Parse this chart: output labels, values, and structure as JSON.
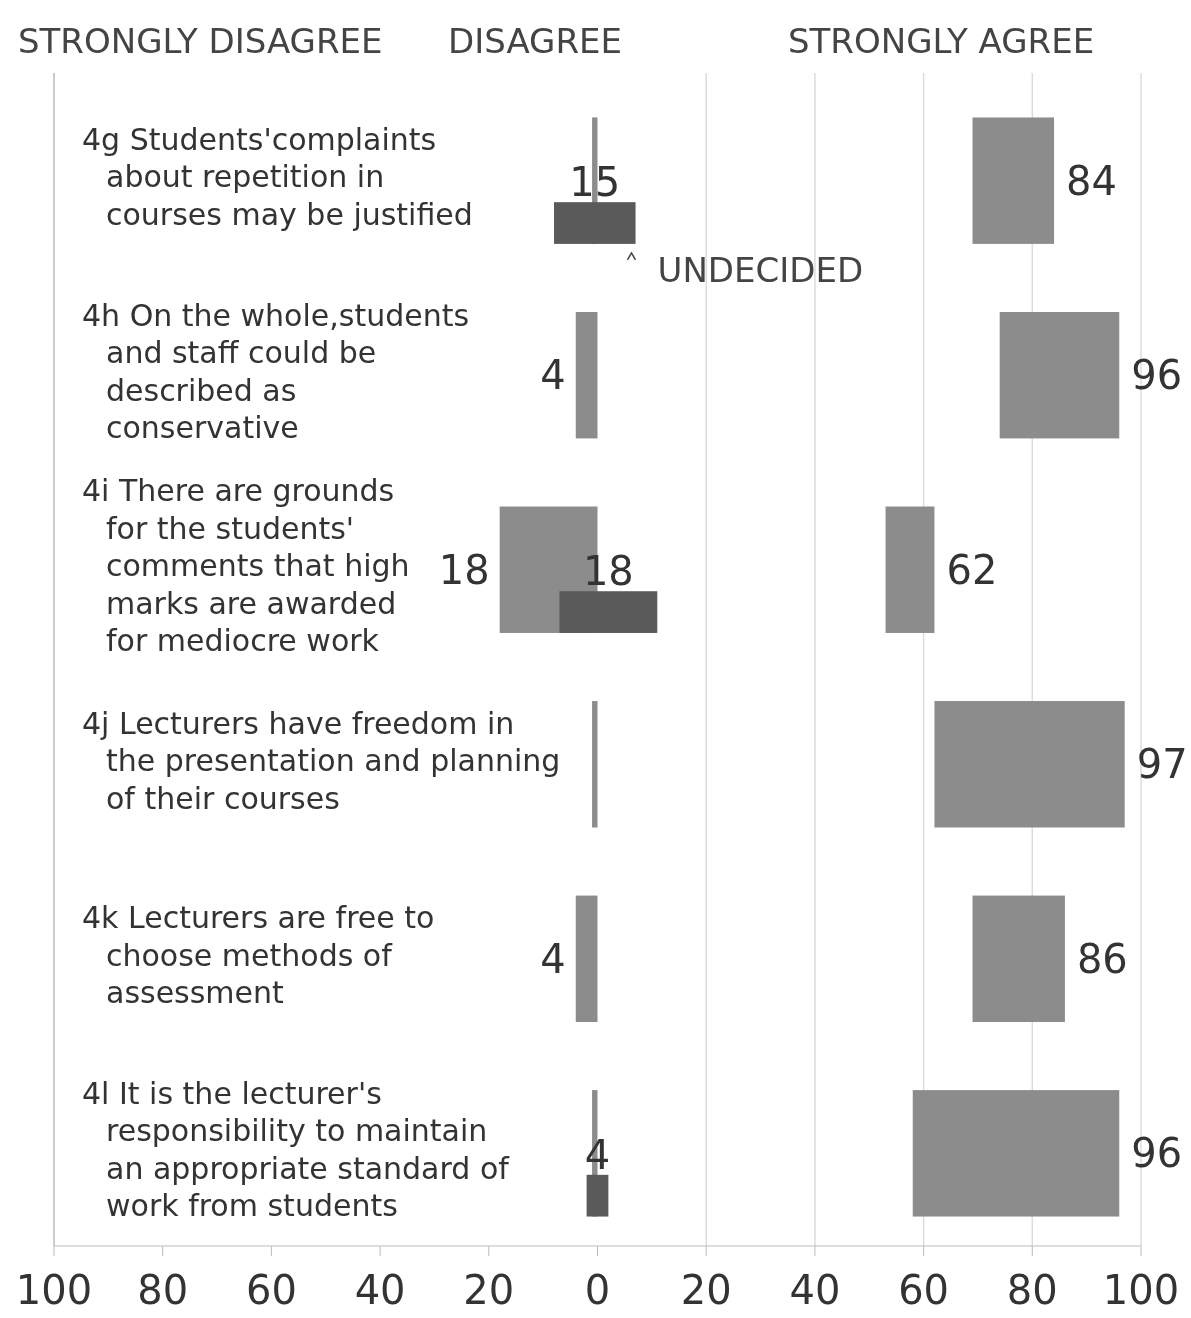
{
  "chart_data": {
    "type": "bar",
    "orientation": "horizontal",
    "categories": [
      "4g Students'complaints about repetition in courses may be justified",
      "4h On the whole,students and staff could be described as conservative",
      "4i There are grounds for the students' comments that high marks are awarded for mediocre work",
      "4j Lecturers have freedom in the presentation and planning of their courses",
      "4k Lecturers are free to choose methods of assessment",
      "4l It is the lecturer's responsibility to maintain an appropriate standard of work from students"
    ],
    "series": [
      {
        "color": "#8c8c8c",
        "base": [
          69,
          74,
          53,
          62,
          69,
          58
        ],
        "values": [
          15,
          22,
          9,
          35,
          17,
          38
        ],
        "value_labels": [
          "84",
          "96",
          "62",
          "97",
          "86",
          "96"
        ]
      },
      {
        "color": "#8c8c8c",
        "base": [
          0,
          0,
          0,
          0,
          0,
          0
        ],
        "values": [
          -1,
          -4,
          -18,
          -1,
          -4,
          -1
        ],
        "value_labels": [
          null,
          "4",
          "18",
          null,
          "4",
          null
        ]
      },
      {
        "color": "#5a5a5a",
        "base": [
          -8,
          null,
          -7,
          null,
          null,
          -2
        ],
        "values": [
          15,
          null,
          18,
          null,
          null,
          4
        ],
        "value_labels": [
          "15",
          null,
          "18",
          null,
          null,
          "4"
        ]
      }
    ],
    "xlim": [
      -100,
      100
    ],
    "xticks": [
      {
        "value": -100,
        "label": "100"
      },
      {
        "value": -80,
        "label": "80"
      },
      {
        "value": -60,
        "label": "60"
      },
      {
        "value": -40,
        "label": "40"
      },
      {
        "value": -20,
        "label": "20"
      },
      0,
      20,
      40,
      60,
      80,
      100
    ],
    "annotations": [
      "STRONGLY DISAGREE",
      "DISAGREE",
      "STRONGLY AGREE",
      "UNDECIDED"
    ],
    "grid": "x"
  }
}
